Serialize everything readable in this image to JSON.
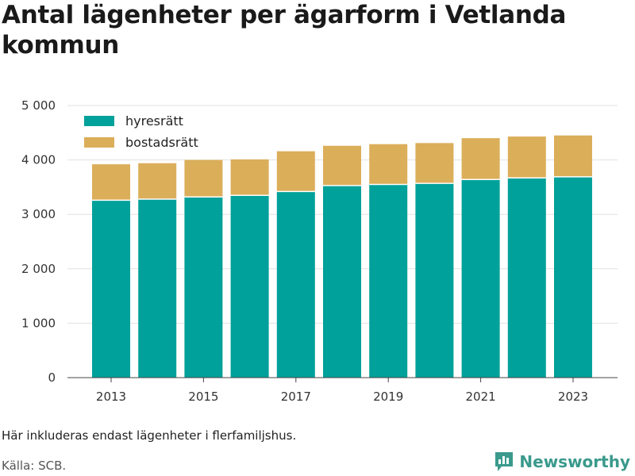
{
  "title": "Antal lägenheter per ägarform i Vetlanda kommun",
  "note": "Här inkluderas endast lägenheter i flerfamiljshus.",
  "source": "Källa: SCB.",
  "brand": {
    "name": "Newsworthy",
    "color": "#3a9a8c",
    "icon": "bar-chart-logo-icon"
  },
  "chart_data": {
    "type": "bar",
    "stacked": true,
    "categories": [
      "2013",
      "2014",
      "2015",
      "2016",
      "2017",
      "2018",
      "2019",
      "2020",
      "2021",
      "2022",
      "2023"
    ],
    "x_tick_labels": [
      "2013",
      "2015",
      "2017",
      "2019",
      "2021",
      "2023"
    ],
    "series": [
      {
        "name": "hyresrätt",
        "color": "#00a19a",
        "values": [
          3260,
          3280,
          3320,
          3350,
          3420,
          3530,
          3550,
          3570,
          3640,
          3670,
          3690
        ]
      },
      {
        "name": "bostadsrätt",
        "color": "#dbae5a",
        "values": [
          660,
          660,
          680,
          660,
          740,
          730,
          740,
          740,
          760,
          760,
          760
        ]
      }
    ],
    "ylim": [
      0,
      5000
    ],
    "y_ticks": [
      0,
      1000,
      2000,
      3000,
      4000,
      5000
    ],
    "y_tick_labels": [
      "0",
      "1 000",
      "2 000",
      "3 000",
      "4 000",
      "5 000"
    ],
    "grid": true,
    "legend_position": "top-left"
  }
}
